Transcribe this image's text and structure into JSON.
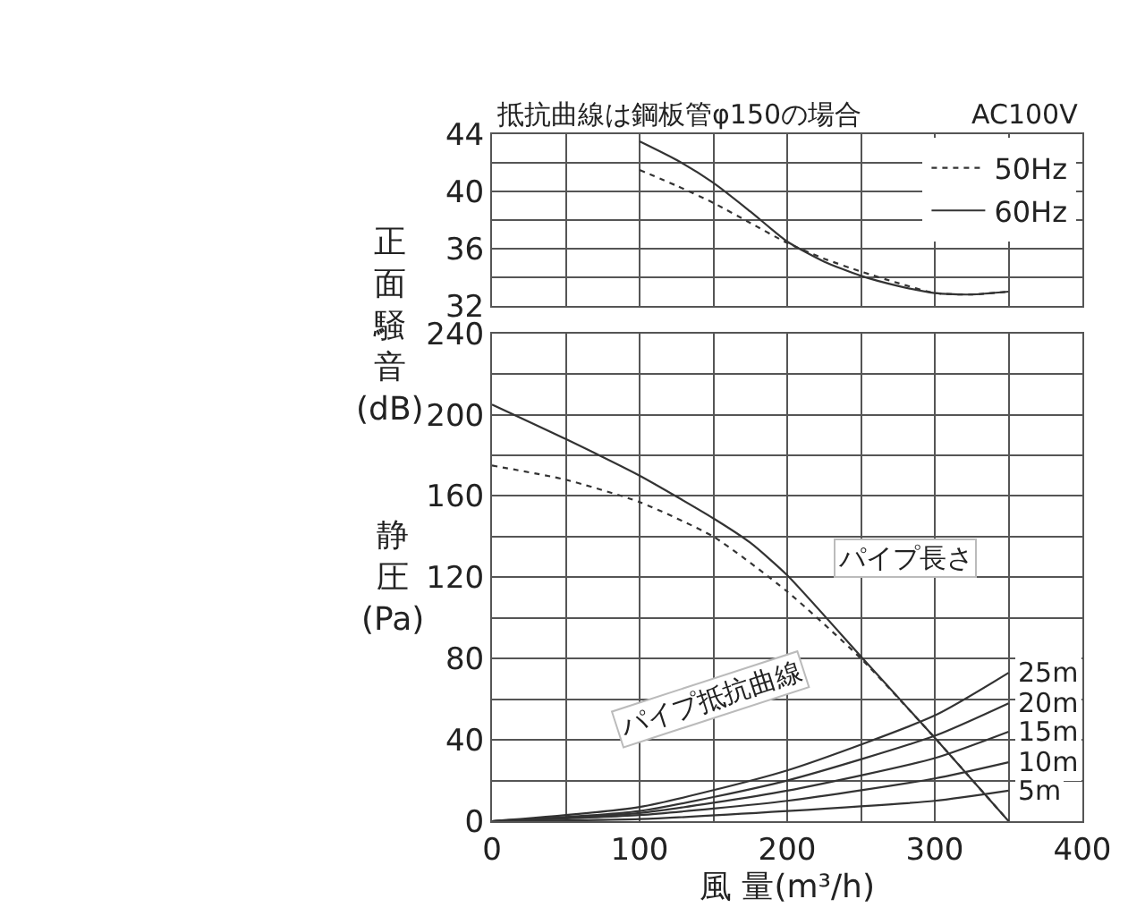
{
  "chart_data": [
    {
      "type": "line",
      "ylabel": "正面騒音(dB)",
      "annotations": [
        "抵抗曲線は鋼板管φ150の場合",
        "AC100V"
      ],
      "xlim": [
        0,
        400
      ],
      "xticks": [
        0,
        100,
        200,
        300,
        400
      ],
      "ylim": [
        32,
        44
      ],
      "yticks": [
        32,
        36,
        40,
        44
      ],
      "tick_labels": "y",
      "grid": true,
      "legend": "top right",
      "series": [
        {
          "name": "50Hz",
          "color": "#333333",
          "line_style": "dotted",
          "x": [
            100,
            125,
            150,
            175,
            200,
            225,
            250,
            275,
            300,
            325,
            350
          ],
          "values": [
            41.5,
            40.4,
            39.2,
            37.8,
            36.4,
            35.3,
            34.4,
            33.6,
            32.9,
            32.8,
            33.0
          ]
        },
        {
          "name": "60Hz",
          "color": "#333333",
          "line_style": "solid",
          "x": [
            100,
            125,
            150,
            175,
            200,
            225,
            250,
            275,
            300,
            325,
            350
          ],
          "values": [
            43.5,
            42.2,
            40.6,
            38.6,
            36.5,
            35.1,
            34.1,
            33.4,
            32.9,
            32.8,
            33.0
          ]
        }
      ]
    },
    {
      "type": "line",
      "ylabel": "静圧(Pa)",
      "xlabel": "風 量(m³/h)",
      "xlim": [
        0,
        400
      ],
      "xticks": [
        0,
        100,
        200,
        300,
        400
      ],
      "ylim": [
        0,
        240
      ],
      "yticks": [
        0,
        40,
        80,
        120,
        160,
        200,
        240
      ],
      "grid": true,
      "annotations": [
        "パイプ長さ",
        "パイプ抵抗曲線"
      ],
      "series": [
        {
          "color": "#333333",
          "line_style": "dotted",
          "x": [
            0,
            50,
            100,
            150,
            200,
            250,
            300,
            350
          ],
          "values": [
            175,
            168,
            157,
            140,
            113,
            80,
            41,
            0
          ]
        },
        {
          "color": "#333333",
          "line_style": "solid",
          "x": [
            0,
            50,
            100,
            150,
            175,
            200,
            250,
            300,
            350
          ],
          "values": [
            205,
            188,
            170,
            149,
            137,
            121,
            81,
            41,
            0
          ]
        },
        {
          "name": "25m",
          "color": "#333333",
          "line_style": "solid",
          "x": [
            0,
            100,
            200,
            300,
            350
          ],
          "values": [
            0,
            7,
            25,
            52,
            73
          ]
        },
        {
          "name": "20m",
          "color": "#333333",
          "line_style": "solid",
          "x": [
            0,
            100,
            200,
            300,
            350
          ],
          "values": [
            0,
            5,
            20,
            42,
            58
          ]
        },
        {
          "name": "15m",
          "color": "#333333",
          "line_style": "solid",
          "x": [
            0,
            100,
            200,
            300,
            350
          ],
          "values": [
            0,
            4,
            15,
            31,
            44
          ]
        },
        {
          "name": "10m",
          "color": "#333333",
          "line_style": "solid",
          "x": [
            0,
            100,
            200,
            300,
            350
          ],
          "values": [
            0,
            3,
            10,
            21,
            29
          ]
        },
        {
          "name": "5m",
          "color": "#333333",
          "line_style": "solid",
          "x": [
            0,
            100,
            200,
            300,
            350
          ],
          "values": [
            0,
            1,
            5,
            10,
            15
          ]
        }
      ]
    }
  ]
}
